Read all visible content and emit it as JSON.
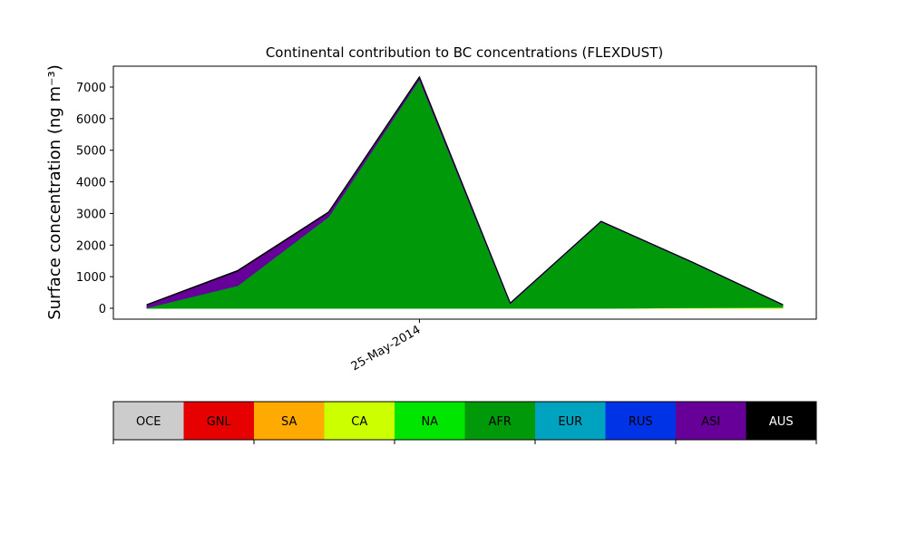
{
  "chart_data": {
    "type": "stacked_area",
    "title": "Continental contribution to BC concentrations (FLEXDUST)",
    "ylabel": "Surface concentration (ng m⁻³)",
    "categories": [
      null,
      null,
      null,
      "25-May-2014",
      null,
      null,
      null,
      null
    ],
    "ylim": [
      -344,
      7660
    ],
    "yticks": [
      0,
      1000,
      2000,
      3000,
      4000,
      5000,
      6000,
      7000
    ],
    "series": [
      {
        "name": "OCE",
        "color": "#cccccc",
        "values": [
          0,
          0,
          0,
          0,
          0,
          0,
          0,
          0
        ]
      },
      {
        "name": "GNL",
        "color": "#e60000",
        "values": [
          0,
          0,
          0,
          0,
          0,
          0,
          0,
          0
        ]
      },
      {
        "name": "SA",
        "color": "#ffaa00",
        "values": [
          0,
          0,
          0,
          0,
          0,
          0,
          0,
          0
        ]
      },
      {
        "name": "CA",
        "color": "#ccff00",
        "values": [
          0,
          0,
          0,
          0,
          0,
          0,
          20,
          30
        ]
      },
      {
        "name": "NA",
        "color": "#00e600",
        "values": [
          0,
          0,
          0,
          0,
          0,
          0,
          0,
          0
        ]
      },
      {
        "name": "AFR",
        "color": "#00990a",
        "values": [
          20,
          720,
          2900,
          7250,
          150,
          2740,
          1440,
          80
        ]
      },
      {
        "name": "EUR",
        "color": "#00a3bf",
        "values": [
          0,
          0,
          0,
          0,
          0,
          0,
          0,
          0
        ]
      },
      {
        "name": "RUS",
        "color": "#0033e6",
        "values": [
          0,
          0,
          0,
          0,
          0,
          0,
          0,
          0
        ]
      },
      {
        "name": "ASI",
        "color": "#660099",
        "values": [
          90,
          460,
          130,
          60,
          15,
          10,
          5,
          5
        ]
      },
      {
        "name": "AUS",
        "color": "#000000",
        "values": [
          10,
          20,
          20,
          20,
          5,
          5,
          5,
          5
        ]
      }
    ]
  }
}
